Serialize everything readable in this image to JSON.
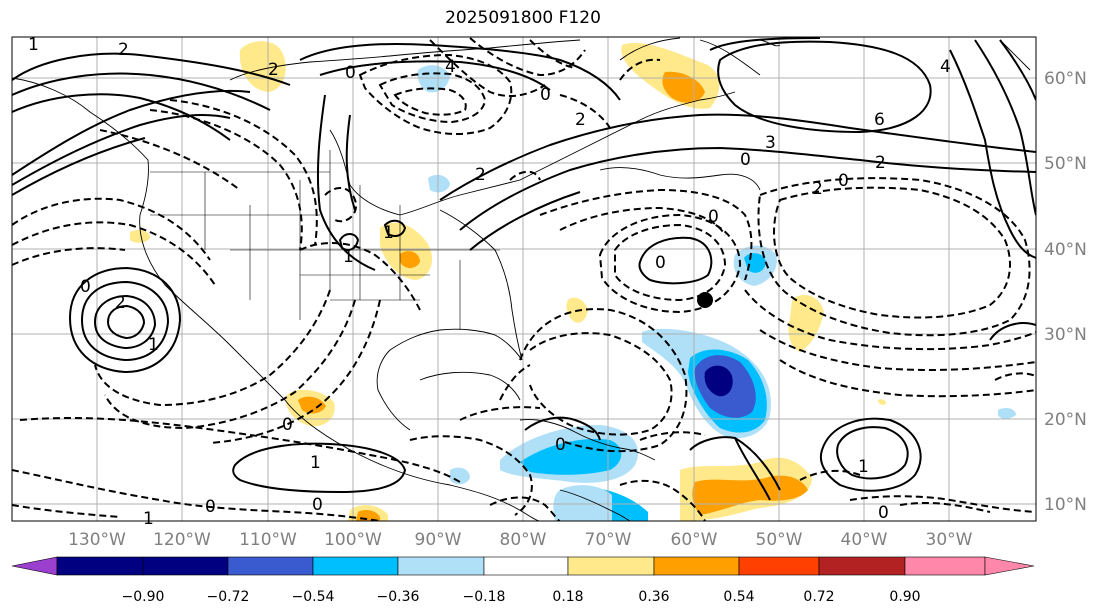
{
  "title": "2025091800 F120",
  "lon_labels": [
    "130°W",
    "120°W",
    "110°W",
    "100°W",
    "90°W",
    "80°W",
    "70°W",
    "60°W",
    "50°W",
    "40°W",
    "30°W"
  ],
  "lat_labels": [
    "60°N",
    "50°N",
    "40°N",
    "30°N",
    "20°N",
    "10°N"
  ],
  "colorbar": {
    "ticks": [
      "−0.90",
      "−0.72",
      "−0.54",
      "−0.36",
      "−0.18",
      "0.18",
      "0.36",
      "0.54",
      "0.72",
      "0.90"
    ],
    "colors": {
      "under": "#9b3fcf",
      "b1": "#000080",
      "b2": "#3a5bcf",
      "b3": "#00bfff",
      "b4": "#afe0f8",
      "b5": "#ffffff",
      "b6": "#ffe98a",
      "b7": "#ffa000",
      "b8": "#ff4000",
      "b9": "#b22222",
      "over": "#ff88aa"
    }
  },
  "contour_labels": {
    "l1": "2",
    "l2": "1",
    "l3": "0",
    "l4": "2",
    "l5": "0",
    "l6": "1",
    "l7": "0",
    "l8": "2",
    "l9": "2",
    "l10": "6",
    "l11": "4",
    "l12": "0",
    "l13": "2",
    "l14": "0",
    "l15": "0",
    "l16": "1",
    "l17": "0",
    "l18": "1",
    "l19": "0",
    "l20": "2",
    "l21": "3",
    "l22": "1",
    "l23": "0",
    "l24": "0",
    "l25": "1",
    "l26": "0",
    "l27": "4",
    "l28": "2",
    "l29": "0",
    "l30": "1"
  }
}
